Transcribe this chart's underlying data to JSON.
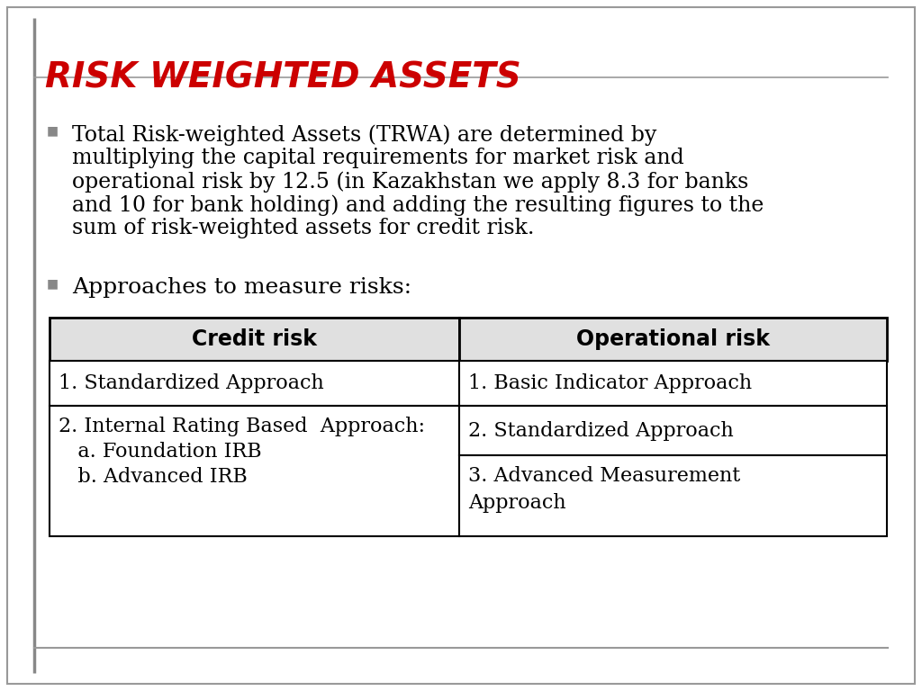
{
  "title": "RISK WEIGHTED ASSETS",
  "title_color": "#CC0000",
  "title_fontsize": 28,
  "bullet1": "Total Risk-weighted Assets (TRWA) are determined by multiplying the capital requirements for market risk and operational risk by 12.5 (in Kazakhstan we apply 8.3 for banks and 10 for bank holding) and adding the resulting figures to the sum of risk-weighted assets for credit risk.",
  "bullet1_lines": [
    "Total Risk-weighted Assets (TRWA) are determined by",
    "multiplying the capital requirements for market risk and",
    "operational risk by 12.5 (in Kazakhstan we apply 8.3 for banks",
    "and 10 for bank holding) and adding the resulting figures to the",
    "sum of risk-weighted assets for credit risk."
  ],
  "bullet2": "Approaches to measure risks:",
  "table_header": [
    "Credit risk",
    "Operational risk"
  ],
  "table_row1_left": "1. Standardized Approach",
  "table_row1_right": "1. Basic Indicator Approach",
  "table_row2_left_line1": "2. Internal Rating Based  Approach:",
  "table_row2_left_line2": "   a. Foundation IRB",
  "table_row2_left_line3": "   b. Advanced IRB",
  "table_row2_right_upper": "2. Standardized Approach",
  "table_row2_right_lower_line1": "3. Advanced Measurement",
  "table_row2_right_lower_line2": "Approach",
  "bg_color": "#FFFFFF",
  "text_color": "#000000",
  "bullet_color": "#888888",
  "table_border_color": "#000000",
  "table_header_bg": "#E0E0E0",
  "font_size_body": 17,
  "font_size_table": 16,
  "font_size_table_header": 17,
  "slide_border_color": "#999999",
  "bottom_line_color": "#999999",
  "left_bar_color": "#888888"
}
